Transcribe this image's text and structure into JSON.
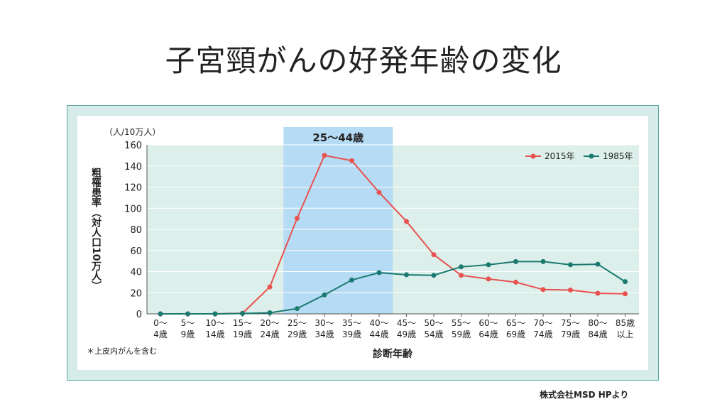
{
  "slide": {
    "title": "子宮頸がんの好発年齢の変化",
    "credit": "株式会社MSD HPより"
  },
  "chart_data": {
    "type": "line",
    "unit_label": "（人/10万人）",
    "ylabel": "粗罹患率（対人口10万人）",
    "xlabel": "診断年齢",
    "footnote": "＊上皮内がんを含む",
    "highlight": {
      "label": "25～44歳",
      "from_index": 5,
      "to_index": 9
    },
    "categories": [
      [
        "0～",
        "4歳"
      ],
      [
        "5～",
        "9歳"
      ],
      [
        "10～",
        "14歳"
      ],
      [
        "15～",
        "19歳"
      ],
      [
        "20～",
        "24歳"
      ],
      [
        "25～",
        "29歳"
      ],
      [
        "30～",
        "34歳"
      ],
      [
        "35～",
        "39歳"
      ],
      [
        "40～",
        "44歳"
      ],
      [
        "45～",
        "49歳"
      ],
      [
        "50～",
        "54歳"
      ],
      [
        "55～",
        "59歳"
      ],
      [
        "60～",
        "64歳"
      ],
      [
        "65～",
        "69歳"
      ],
      [
        "70～",
        "74歳"
      ],
      [
        "75～",
        "79歳"
      ],
      [
        "80～",
        "84歳"
      ],
      [
        "85歳",
        "以上"
      ]
    ],
    "ylim": [
      0,
      160
    ],
    "yticks": [
      0,
      20,
      40,
      60,
      80,
      100,
      120,
      140,
      160
    ],
    "series": [
      {
        "name": "2015年",
        "color": "#e8524f",
        "values": [
          0,
          0,
          0,
          0.5,
          25.5,
          90.5,
          150,
          145,
          115,
          87.5,
          56,
          36.5,
          33,
          30,
          23,
          22.5,
          19.5,
          19
        ]
      },
      {
        "name": "1985年",
        "color": "#1a7a70",
        "values": [
          0,
          0,
          0,
          0.3,
          1,
          5,
          18,
          32,
          39,
          37,
          36.5,
          44.5,
          46.5,
          49.5,
          49.5,
          46.5,
          47,
          30.5
        ]
      }
    ],
    "legend_position": "top-right",
    "colors": {
      "plot_bg": "#dcefea",
      "highlight_bg": "#b6dbf4",
      "axis": "#555555"
    }
  }
}
